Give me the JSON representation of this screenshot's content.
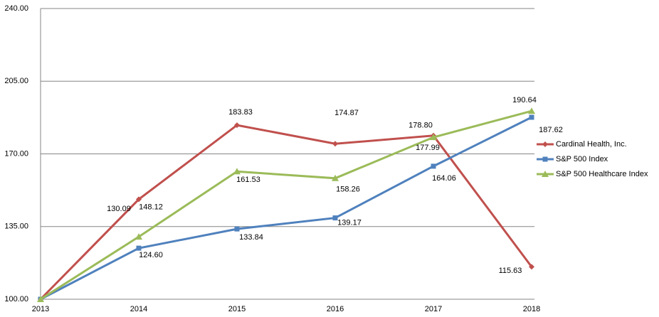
{
  "chart_data": {
    "type": "line",
    "categories": [
      "2013",
      "2014",
      "2015",
      "2016",
      "2017",
      "2018"
    ],
    "series": [
      {
        "name": "Cardinal Health, Inc.",
        "color": "#c0504d",
        "marker": "diamond",
        "values": [
          100,
          148.12,
          183.83,
          174.87,
          178.8,
          115.63
        ],
        "value_labels": [
          null,
          "148.12",
          "183.83",
          "174.87",
          "178.80",
          "115.63"
        ]
      },
      {
        "name": "S&P 500 Index",
        "color": "#4f81bd",
        "marker": "square",
        "values": [
          100,
          124.6,
          133.84,
          139.17,
          164.06,
          187.62
        ],
        "value_labels": [
          null,
          "124.60",
          "133.84",
          "139.17",
          "164.06",
          "187.62"
        ]
      },
      {
        "name": "S&P 500 Healthcare Index",
        "color": "#9bbb59",
        "marker": "triangle",
        "values": [
          100,
          130.09,
          161.53,
          158.26,
          177.99,
          190.64
        ],
        "value_labels": [
          null,
          "130.09",
          "161.53",
          "158.26",
          "177.99",
          "190.64"
        ]
      }
    ],
    "ylim": [
      100,
      240
    ],
    "yticks": [
      {
        "value": 100,
        "label": "100.00"
      },
      {
        "value": 135,
        "label": "135.00"
      },
      {
        "value": 170,
        "label": "170.00"
      },
      {
        "value": 205,
        "label": "205.00"
      },
      {
        "value": 240,
        "label": "240.00"
      }
    ],
    "grid": true,
    "legend": "right"
  }
}
